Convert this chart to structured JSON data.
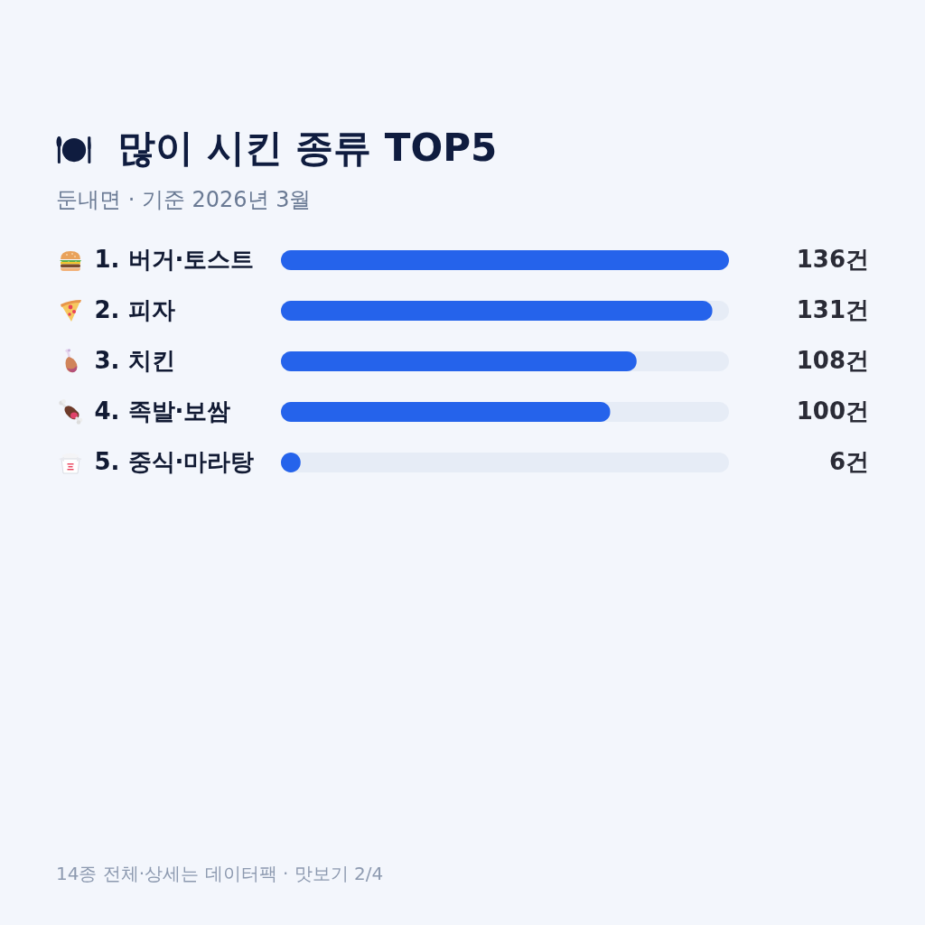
{
  "chart_data": {
    "type": "bar",
    "orientation": "horizontal",
    "title": "많이 시킨 종류 TOP5",
    "subtitle": "둔내면 · 기준 2026년 3월",
    "categories": [
      "1. 버거·토스트",
      "2. 피자",
      "3. 치킨",
      "4. 족발·보쌈",
      "5. 중식·마라탕"
    ],
    "values": [
      136,
      131,
      108,
      100,
      6
    ],
    "color": "#2563eb",
    "value_labels": [
      "136건",
      "131건",
      "108건",
      "100건",
      "6건"
    ],
    "annotations": [
      "14종 전체·상세는 데이터팩 · 맛보기 2/4"
    ]
  }
}
